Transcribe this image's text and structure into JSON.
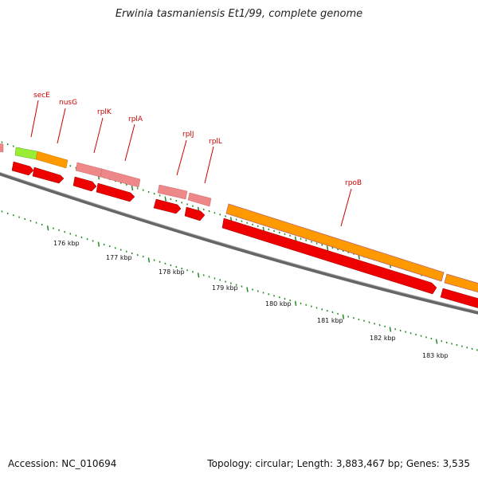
{
  "title": "Erwinia tasmaniensis Et1/99, complete genome",
  "footer": {
    "accession": "Accession: NC_010694",
    "stats": "Topology: circular; Length: 3,883,467 bp; Genes: 3,535"
  },
  "gene_labels": [
    "secE",
    "nusG",
    "rplK",
    "rplA",
    "rplJ",
    "rplL",
    "rpoB"
  ],
  "kbp_labels": [
    "176 kbp",
    "177 kbp",
    "178 kbp",
    "179 kbp",
    "180 kbp",
    "181 kbp",
    "182 kbp",
    "183 kbp"
  ],
  "colors": {
    "backbone": "#777777",
    "cds_red": "#ee0000",
    "gene_pink": "#ee8888",
    "gene_orange": "#ff9900",
    "gene_green": "#99ee33",
    "tick_green": "#228b22",
    "label_red": "#cc0000"
  }
}
